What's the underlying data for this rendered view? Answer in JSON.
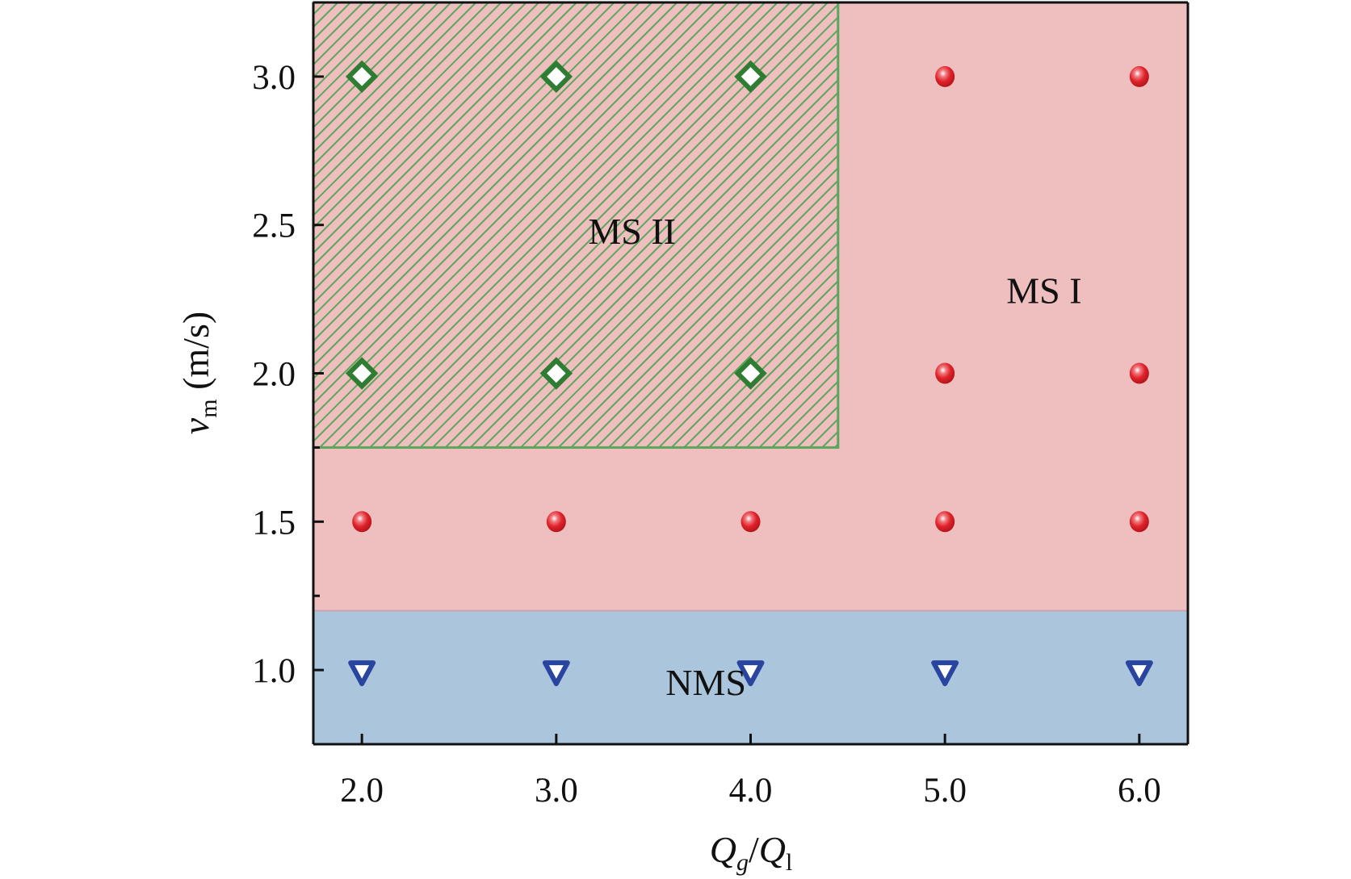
{
  "chart_data": {
    "type": "scatter",
    "title": "",
    "xlabel": {
      "main": "Q",
      "sub1": "g",
      "slash": "/",
      "main2": "Q",
      "sub2": "l"
    },
    "ylabel": {
      "main": "v",
      "sub": "m",
      "unit": " (m/s)"
    },
    "xlim": [
      1.75,
      6.25
    ],
    "ylim": [
      0.75,
      3.25
    ],
    "xticks": [
      2.0,
      3.0,
      4.0,
      5.0,
      6.0
    ],
    "xtick_labels": [
      "2.0",
      "3.0",
      "4.0",
      "5.0",
      "6.0"
    ],
    "yticks": [
      1.0,
      1.5,
      2.0,
      2.5,
      3.0
    ],
    "ytick_labels": [
      "1.0",
      "1.5",
      "2.0",
      "2.5",
      "3.0"
    ],
    "yminor_ticks": [
      1.25,
      1.75
    ],
    "regions": [
      {
        "name": "NMS",
        "label": "NMS",
        "x": [
          1.75,
          6.25
        ],
        "y": [
          0.75,
          1.2
        ],
        "color": "#abc6dc",
        "label_at": [
          3.77,
          0.96
        ]
      },
      {
        "name": "MS I",
        "label": "MS I",
        "x": [
          1.75,
          6.25
        ],
        "y": [
          1.2,
          3.25
        ],
        "color": "#efbfc0",
        "label_at": [
          5.51,
          2.28
        ]
      },
      {
        "name": "MS II",
        "label": "MS II",
        "x": [
          1.75,
          4.45
        ],
        "y": [
          1.75,
          3.25
        ],
        "color": "#5aa65a",
        "hatched": true,
        "label_at": [
          3.39,
          2.48
        ]
      }
    ],
    "series": [
      {
        "name": "NMS",
        "marker": "triangle-down-open",
        "color": "#2a45a0",
        "x": [
          2,
          3,
          4,
          5,
          6
        ],
        "y": [
          1.0,
          1.0,
          1.0,
          1.0,
          1.0
        ]
      },
      {
        "name": "MS I",
        "marker": "sphere",
        "color": "#e0222a",
        "x": [
          2,
          3,
          4,
          5,
          6,
          5,
          6,
          5,
          6
        ],
        "y": [
          1.5,
          1.5,
          1.5,
          1.5,
          1.5,
          2.0,
          2.0,
          3.0,
          3.0
        ]
      },
      {
        "name": "MS II",
        "marker": "diamond-open",
        "color": "#2e7d32",
        "x": [
          2,
          3,
          4,
          2,
          3,
          4
        ],
        "y": [
          2.0,
          2.0,
          2.0,
          3.0,
          3.0,
          3.0
        ]
      }
    ]
  }
}
